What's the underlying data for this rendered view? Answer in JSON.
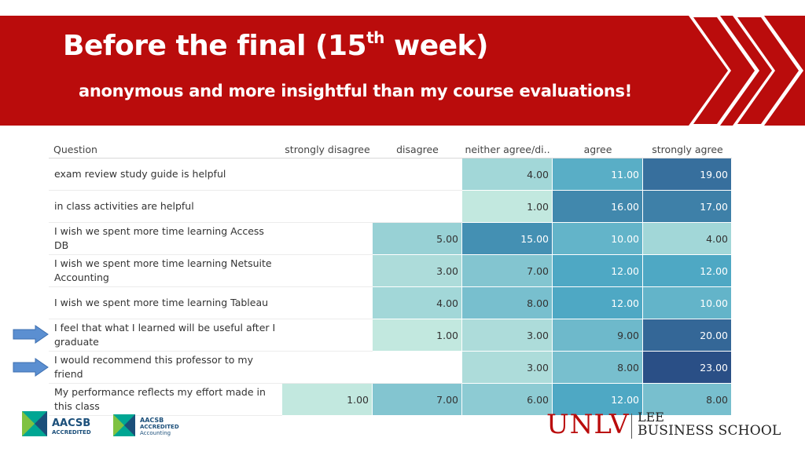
{
  "header": {
    "title_main": "Before the final (15",
    "title_sup": "th",
    "title_end": " week)",
    "subtitle": "anonymous and more insightful than my course evaluations!"
  },
  "table": {
    "columns": [
      "Question",
      "strongly disagree",
      "disagree",
      "neither agree/di..",
      "agree",
      "strongly agree"
    ],
    "rows": [
      {
        "question": "exam review study guide is helpful",
        "values": [
          "",
          "",
          "4.00",
          "11.00",
          "19.00"
        ]
      },
      {
        "question": "in class activities are helpful",
        "values": [
          "",
          "",
          "1.00",
          "16.00",
          "17.00"
        ]
      },
      {
        "question": "I wish we spent more time learning Access DB",
        "values": [
          "",
          "5.00",
          "15.00",
          "10.00",
          "4.00"
        ]
      },
      {
        "question": "I wish we spent more time learning Netsuite Accounting",
        "values": [
          "",
          "3.00",
          "7.00",
          "12.00",
          "12.00"
        ]
      },
      {
        "question": "I wish we spent more time learning Tableau",
        "values": [
          "",
          "4.00",
          "8.00",
          "12.00",
          "10.00"
        ]
      },
      {
        "question": "I feel that what I learned will be useful after I graduate",
        "values": [
          "",
          "1.00",
          "3.00",
          "9.00",
          "20.00"
        ]
      },
      {
        "question": "I would recommend this professor to my friend",
        "values": [
          "",
          "",
          "3.00",
          "8.00",
          "23.00"
        ]
      },
      {
        "question": "My performance reflects my effort made in this class",
        "values": [
          "1.00",
          "7.00",
          "6.00",
          "12.00",
          "8.00"
        ]
      }
    ]
  },
  "colors": {
    "banner": "#ba0c0c",
    "arrow": "#5b8fd1",
    "heat_low": "#c2e8df",
    "heat_high": "#2a4f86"
  },
  "footer": {
    "aacsb_1": {
      "name": "AACSB",
      "tag": "ACCREDITED"
    },
    "aacsb_2": {
      "name": "AACSB",
      "line1": "ACCREDITED",
      "line2": "Accounting"
    },
    "school_logo": {
      "unlv": "UNLV",
      "lee": "LEE",
      "business_school": "BUSINESS SCHOOL"
    }
  }
}
